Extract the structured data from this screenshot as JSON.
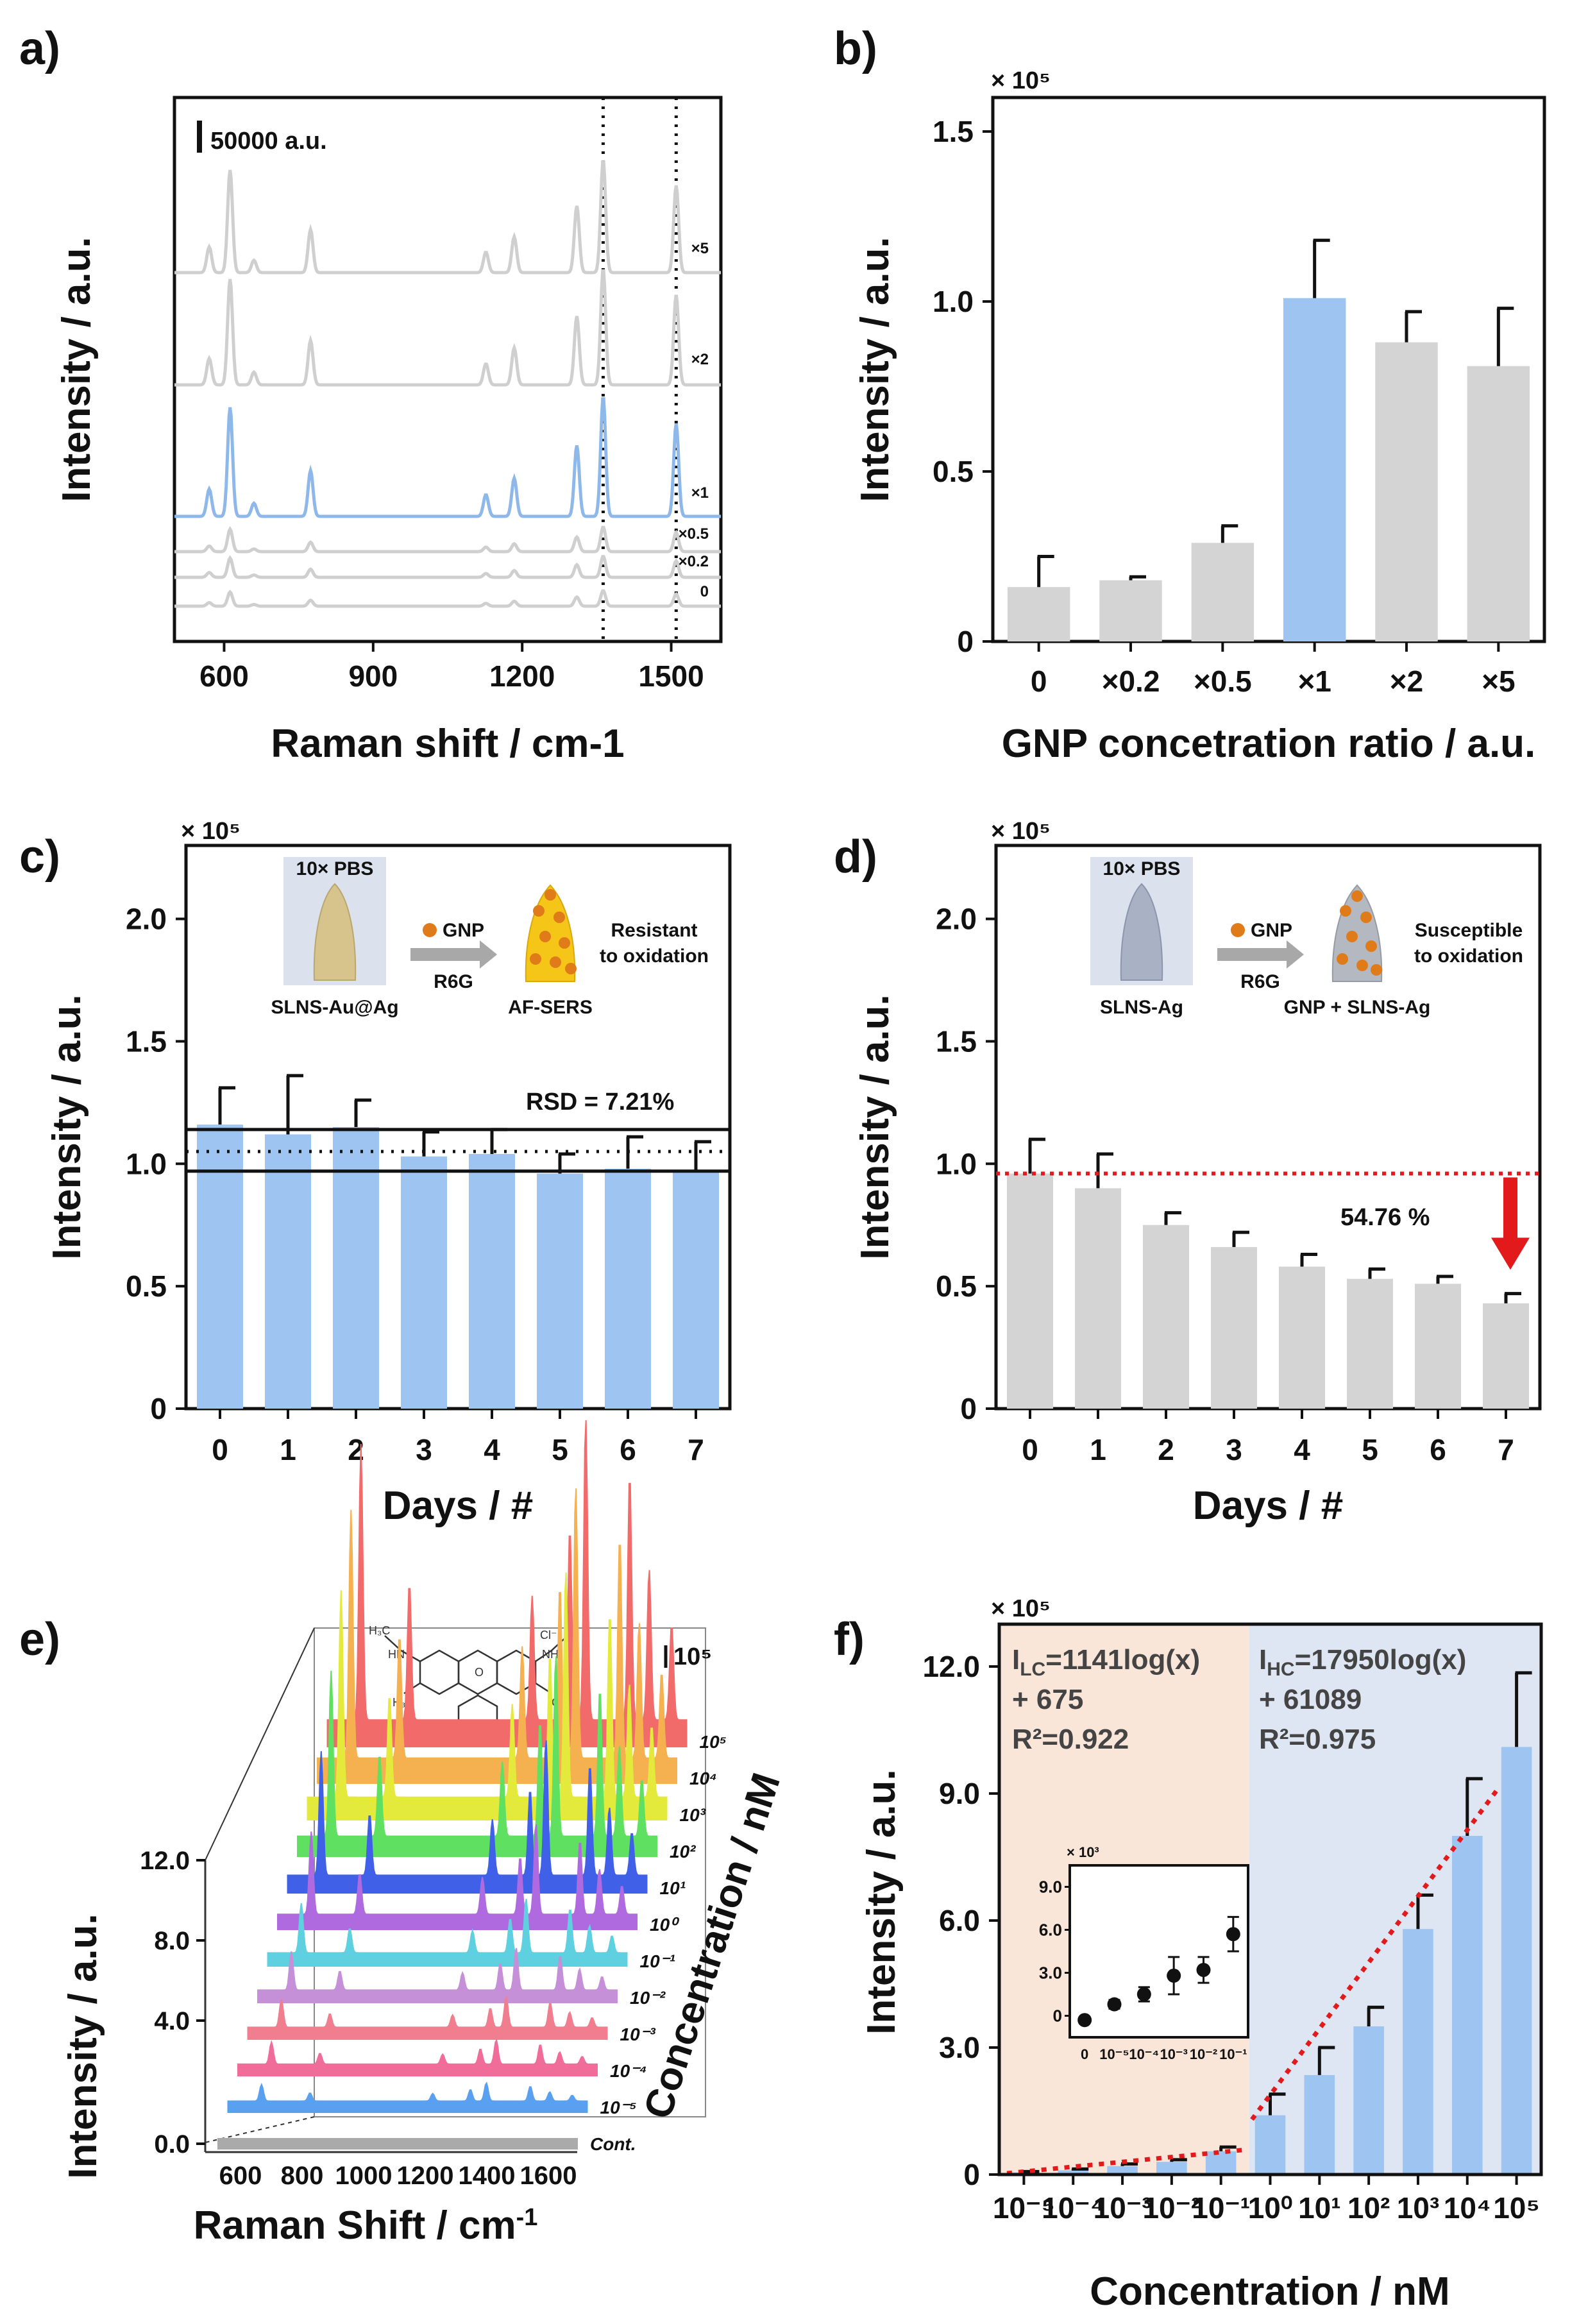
{
  "colors": {
    "blue": "#9ec5f2",
    "blue_line": "#8fb8ea",
    "gray": "#d4d4d4",
    "gray_line": "#cfcfcf",
    "red": "#e31a1c",
    "peach": "#f9e6d9",
    "lavender": "#dfe6f3"
  },
  "panels": {
    "a": {
      "label": "a)",
      "chart_data": {
        "type": "line",
        "xlabel": "Raman shift / cm-1",
        "ylabel": "Intensity / a.u.",
        "xlim": [
          500,
          1600
        ],
        "xticks": [
          600,
          900,
          1200,
          1500
        ],
        "x_tick_labels": [
          "600",
          "900",
          "1200",
          "1500"
        ],
        "scale_bar_label": "50000 a.u.",
        "dotted_lines_x": [
          1363,
          1510
        ],
        "peaks": [
          [
            612,
            1.0
          ],
          [
            570,
            0.25
          ],
          [
            660,
            0.12
          ],
          [
            774,
            0.42
          ],
          [
            1127,
            0.2
          ],
          [
            1184,
            0.35
          ],
          [
            1310,
            0.65
          ],
          [
            1363,
            1.1
          ],
          [
            1510,
            0.85
          ]
        ],
        "series": [
          {
            "name": "×5",
            "baseline": 0.0,
            "scale": 0.0
          },
          {
            "name": "×0.2",
            "baseline": 0.0,
            "scale": 0.0
          },
          {
            "name": "×0.5",
            "baseline": 0.0,
            "scale": 0.0
          },
          {
            "name": "×1",
            "baseline": 0.0,
            "scale": 0.0
          },
          {
            "name": "×2",
            "baseline": 0.0,
            "scale": 0.0
          },
          {
            "name": "0",
            "baseline": 0.0,
            "scale": 0.0
          }
        ],
        "trace_labels": [
          "×5",
          "×2",
          "×1",
          "×0.5",
          "×0.2",
          "0"
        ]
      }
    },
    "b": {
      "label": "b)",
      "chart_data": {
        "type": "bar",
        "multiplier": "× 10⁵",
        "xlabel": "GNP concetration ratio / a.u.",
        "ylabel": "Intensity / a.u.",
        "categories": [
          "0",
          "×0.2",
          "×0.5",
          "×1",
          "×2",
          "×5"
        ],
        "values": [
          0.16,
          0.18,
          0.29,
          1.01,
          0.88,
          0.81
        ],
        "errors": [
          0.09,
          0.01,
          0.05,
          0.17,
          0.09,
          0.17
        ],
        "highlight_index": 3,
        "ylim": [
          0,
          1.6
        ],
        "yticks": [
          0,
          0.5,
          1.0,
          1.5
        ],
        "y_tick_labels": [
          "0",
          "0.5",
          "1.0",
          "1.5"
        ]
      }
    },
    "c": {
      "label": "c)",
      "chart_data": {
        "type": "bar",
        "multiplier": "× 10⁵",
        "xlabel": "Days / #",
        "ylabel": "Intensity / a.u.",
        "categories": [
          "0",
          "1",
          "2",
          "3",
          "4",
          "5",
          "6",
          "7"
        ],
        "values": [
          1.16,
          1.12,
          1.15,
          1.03,
          1.04,
          0.96,
          0.98,
          0.97
        ],
        "errors": [
          0.15,
          0.24,
          0.11,
          0.1,
          0.1,
          0.08,
          0.13,
          0.12
        ],
        "ylim": [
          0,
          2.3
        ],
        "yticks": [
          0,
          0.5,
          1.0,
          1.5,
          2.0
        ],
        "y_tick_labels": [
          "0",
          "0.5",
          "1.0",
          "1.5",
          "2.0"
        ],
        "hlines": {
          "upper": 1.14,
          "mean": 1.05,
          "lower": 0.97
        },
        "annotation": "RSD = 7.21%",
        "inset": {
          "top_label": "10× PBS",
          "arrow_top": "GNP",
          "arrow_bottom": "R6G",
          "left_caption": "SLNS-Au@Ag",
          "right_caption": "AF-SERS",
          "note_line1": "Resistant",
          "note_line2": "to oxidation"
        }
      }
    },
    "d": {
      "label": "d)",
      "chart_data": {
        "type": "bar",
        "multiplier": "× 10⁵",
        "xlabel": "Days / #",
        "ylabel": "Intensity / a.u.",
        "categories": [
          "0",
          "1",
          "2",
          "3",
          "4",
          "5",
          "6",
          "7"
        ],
        "values": [
          0.96,
          0.9,
          0.75,
          0.66,
          0.58,
          0.53,
          0.51,
          0.43
        ],
        "errors": [
          0.14,
          0.14,
          0.05,
          0.06,
          0.05,
          0.04,
          0.03,
          0.04
        ],
        "ylim": [
          0,
          2.3
        ],
        "yticks": [
          0,
          0.5,
          1.0,
          1.5,
          2.0
        ],
        "y_tick_labels": [
          "0",
          "0.5",
          "1.0",
          "1.5",
          "2.0"
        ],
        "reference_line": 0.96,
        "annotation": "54.76 %",
        "inset": {
          "top_label": "10× PBS",
          "arrow_top": "GNP",
          "arrow_bottom": "R6G",
          "left_caption": "SLNS-Ag",
          "right_caption": "GNP + SLNS-Ag",
          "note_line1": "Susceptible",
          "note_line2": "to oxidation"
        }
      }
    },
    "e": {
      "label": "e)",
      "chart_data": {
        "type": "line",
        "xlabel": "Raman Shift / cm-1",
        "ylabel": "Intensity / a.u.",
        "zlabel": "Concentration / nM",
        "x_tick_labels": [
          "600",
          "800",
          "1000",
          "1200",
          "1400",
          "1600"
        ],
        "y_tick_labels": [
          "0.0",
          "4.0",
          "8.0",
          "12.0"
        ],
        "scale_label": "10⁵",
        "series_names": [
          "Cont.",
          "10⁻⁵",
          "10⁻⁴",
          "10⁻³",
          "10⁻²",
          "10⁻¹",
          "10⁰",
          "10¹",
          "10²",
          "10³",
          "10⁴",
          "10⁵"
        ],
        "series_colors": [
          "#aaaaaa",
          "#5aa0f0",
          "#f06d9a",
          "#f07e8e",
          "#c590d8",
          "#5fd0e0",
          "#b06ae0",
          "#4060e8",
          "#60e060",
          "#e4ea3c",
          "#f5b050",
          "#f26b6b"
        ],
        "series_amplitude": [
          0.0,
          0.06,
          0.08,
          0.1,
          0.14,
          0.18,
          0.3,
          0.45,
          0.6,
          0.75,
          0.9,
          1.0
        ],
        "molecule": "R6G",
        "molecule_labels": [
          "Cl⁻",
          "NH",
          "O",
          "O"
        ]
      }
    },
    "f": {
      "label": "f)",
      "chart_data": {
        "type": "bar",
        "multiplier": "× 10⁵",
        "xlabel": "Concentration / nM",
        "ylabel": "Intensity / a.u.",
        "categories": [
          "10⁻⁵",
          "10⁻⁴",
          "10⁻³",
          "10⁻²",
          "10⁻¹",
          "10⁰",
          "10¹",
          "10²",
          "10³",
          "10⁴",
          "10⁵"
        ],
        "values": [
          0.05,
          0.1,
          0.2,
          0.3,
          0.55,
          1.4,
          2.35,
          3.5,
          5.8,
          8.0,
          10.1
        ],
        "errors": [
          0.02,
          0.03,
          0.05,
          0.05,
          0.1,
          0.5,
          0.65,
          0.45,
          0.8,
          1.35,
          1.75
        ],
        "ylim": [
          0,
          13
        ],
        "yticks": [
          0,
          3,
          6,
          9,
          12
        ],
        "y_tick_labels": [
          "0",
          "3.0",
          "6.0",
          "9.0",
          "12.0"
        ],
        "low_fit": {
          "line1": "I",
          "sub1": "LC",
          "line1b": "=1141log(x)",
          "line2": "+ 675",
          "line3": "R²=0.922"
        },
        "high_fit": {
          "line1": "I",
          "sub1": "HC",
          "line1b": "=17950log(x)",
          "line2": "+ 61089",
          "line3": "R²=0.975"
        },
        "inset": {
          "multiplier": "× 10³",
          "categories": [
            "0",
            "10⁻⁵",
            "10⁻⁴",
            "10⁻³",
            "10⁻²",
            "10⁻¹"
          ],
          "values": [
            -0.3,
            0.8,
            1.5,
            2.8,
            3.2,
            5.7
          ],
          "errors": [
            0.2,
            0.3,
            0.5,
            1.3,
            0.9,
            1.2
          ],
          "ylim": [
            -1.5,
            10.5
          ],
          "yticks": [
            0,
            3,
            6,
            9
          ],
          "y_tick_labels": [
            "0",
            "3.0",
            "6.0",
            "9.0"
          ]
        }
      }
    }
  }
}
